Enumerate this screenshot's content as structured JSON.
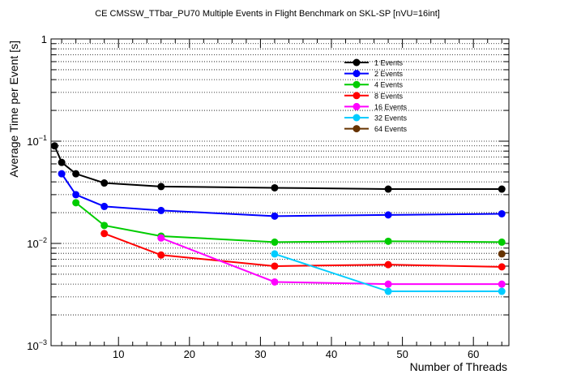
{
  "chart_data": {
    "type": "line",
    "title": "CE CMSSW_TTbar_PU70 Multiple Events in Flight Benchmark on SKL-SP [nVU=16int]",
    "xlabel": "Number of Threads",
    "ylabel": "Average Time per Event [s]",
    "xlim": [
      0.5,
      65
    ],
    "ylim": [
      0.001,
      1
    ],
    "yscale": "log",
    "grid": "horizontal dotted",
    "legend_position": "top-right",
    "x_ticks": [
      {
        "value": 10,
        "label": "10"
      },
      {
        "value": 20,
        "label": "20"
      },
      {
        "value": 30,
        "label": "30"
      },
      {
        "value": 40,
        "label": "40"
      },
      {
        "value": 50,
        "label": "50"
      },
      {
        "value": 60,
        "label": "60"
      }
    ],
    "y_ticks": [
      {
        "value": 0.001,
        "label": "10",
        "exp": "−3"
      },
      {
        "value": 0.01,
        "label": "10",
        "exp": "−2"
      },
      {
        "value": 0.1,
        "label": "10",
        "exp": "−1"
      },
      {
        "value": 1,
        "label": "1",
        "exp": ""
      }
    ],
    "series": [
      {
        "name": "1 Events",
        "color": "#000000",
        "x": [
          1,
          2,
          4,
          8,
          16,
          32,
          48,
          64
        ],
        "y": [
          0.09,
          0.062,
          0.048,
          0.039,
          0.036,
          0.035,
          0.034,
          0.034
        ]
      },
      {
        "name": "2 Events",
        "color": "#0000ff",
        "x": [
          2,
          4,
          8,
          16,
          32,
          48,
          64
        ],
        "y": [
          0.048,
          0.03,
          0.023,
          0.021,
          0.0185,
          0.019,
          0.0195
        ]
      },
      {
        "name": "4 Events",
        "color": "#00cc00",
        "x": [
          4,
          8,
          16,
          32,
          48,
          64
        ],
        "y": [
          0.025,
          0.015,
          0.0118,
          0.0103,
          0.0105,
          0.0103
        ]
      },
      {
        "name": "8 Events",
        "color": "#ff0000",
        "x": [
          8,
          16,
          32,
          48,
          64
        ],
        "y": [
          0.0125,
          0.0077,
          0.006,
          0.0062,
          0.0059
        ]
      },
      {
        "name": "16 Events",
        "color": "#ff00ff",
        "x": [
          16,
          32,
          48,
          64
        ],
        "y": [
          0.0113,
          0.0042,
          0.004,
          0.004
        ]
      },
      {
        "name": "32 Events",
        "color": "#00ccff",
        "x": [
          32,
          48,
          64
        ],
        "y": [
          0.0079,
          0.0034,
          0.0034
        ]
      },
      {
        "name": "64 Events",
        "color": "#663300",
        "x": [
          64
        ],
        "y": [
          0.0079
        ]
      }
    ]
  }
}
